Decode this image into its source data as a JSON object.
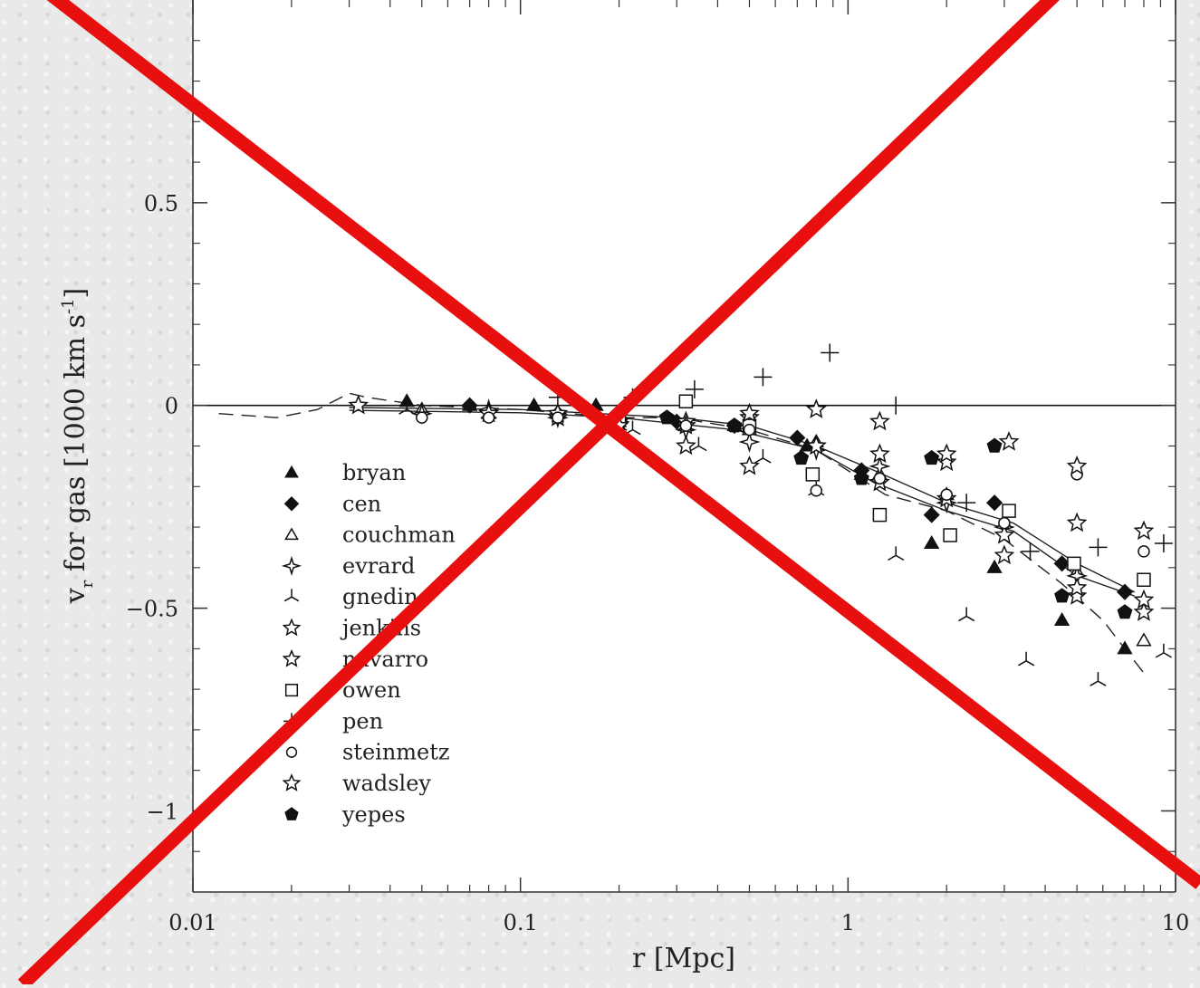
{
  "chart_data": {
    "type": "scatter",
    "xlabel": "r [Mpc]",
    "ylabel": "v_r for gas [1000 km s^-1]",
    "ylabel_main": "v",
    "ylabel_sub": "r",
    "ylabel_rest": " for gas [1000 km s",
    "ylabel_sup": "-1",
    "ylabel_end": "]",
    "xscale": "log",
    "xlim": [
      0.01,
      10
    ],
    "ylim": [
      -1.2,
      1.0
    ],
    "xticks": [
      {
        "value": 0.01,
        "label": "0.01"
      },
      {
        "value": 0.1,
        "label": "0.1"
      },
      {
        "value": 1,
        "label": "1"
      },
      {
        "value": 10,
        "label": "10"
      }
    ],
    "yticks": [
      {
        "value": 0.5,
        "label": "0.5"
      },
      {
        "value": 0,
        "label": "0"
      },
      {
        "value": -0.5,
        "label": "−0.5"
      },
      {
        "value": -1,
        "label": "−1"
      }
    ],
    "legend_position": "lower-left",
    "series": [
      {
        "name": "bryan",
        "marker": "filled-triangle",
        "points": [
          [
            0.045,
            0.01
          ],
          [
            0.07,
            0.0
          ],
          [
            0.11,
            0.0
          ],
          [
            0.17,
            0.0
          ],
          [
            0.45,
            -0.05
          ],
          [
            0.75,
            -0.1
          ],
          [
            1.1,
            -0.17
          ],
          [
            1.8,
            -0.34
          ],
          [
            2.8,
            -0.4
          ],
          [
            4.5,
            -0.53
          ],
          [
            7.0,
            -0.6
          ]
        ]
      },
      {
        "name": "cen",
        "marker": "filled-diamond",
        "points": [
          [
            0.07,
            0.0
          ],
          [
            0.13,
            -0.02
          ],
          [
            0.2,
            -0.03
          ],
          [
            0.3,
            -0.04
          ],
          [
            0.45,
            -0.05
          ],
          [
            0.7,
            -0.08
          ],
          [
            1.1,
            -0.16
          ],
          [
            1.8,
            -0.27
          ],
          [
            2.8,
            -0.24
          ],
          [
            4.5,
            -0.39
          ],
          [
            7.0,
            -0.46
          ]
        ]
      },
      {
        "name": "couchman",
        "marker": "open-triangle",
        "points": [
          [
            0.05,
            -0.01
          ],
          [
            0.08,
            -0.02
          ],
          [
            0.13,
            -0.02
          ],
          [
            0.2,
            -0.04
          ],
          [
            0.32,
            -0.05
          ],
          [
            0.5,
            -0.06
          ],
          [
            0.8,
            -0.09
          ],
          [
            1.25,
            -0.17
          ],
          [
            2.0,
            -0.22
          ],
          [
            3.0,
            -0.29
          ],
          [
            5.0,
            -0.41
          ],
          [
            8.0,
            -0.58
          ]
        ]
      },
      {
        "name": "evrard",
        "marker": "open-diamond-star",
        "points": [
          [
            0.05,
            -0.02
          ],
          [
            0.08,
            -0.01
          ],
          [
            0.13,
            -0.03
          ],
          [
            0.2,
            -0.04
          ],
          [
            0.32,
            -0.06
          ],
          [
            0.5,
            -0.09
          ],
          [
            0.8,
            -0.11
          ],
          [
            1.25,
            -0.15
          ],
          [
            2.0,
            -0.24
          ],
          [
            3.0,
            -0.3
          ],
          [
            5.0,
            -0.42
          ]
        ]
      },
      {
        "name": "gnedin",
        "marker": "three-prong",
        "points": [
          [
            0.045,
            -0.01
          ],
          [
            0.08,
            -0.02
          ],
          [
            0.13,
            -0.02
          ],
          [
            0.2,
            -0.05
          ],
          [
            0.22,
            -0.06
          ],
          [
            0.35,
            -0.1
          ],
          [
            0.55,
            -0.13
          ],
          [
            0.8,
            -0.21
          ],
          [
            1.4,
            -0.37
          ],
          [
            2.3,
            -0.52
          ],
          [
            3.5,
            -0.63
          ],
          [
            5.8,
            -0.68
          ],
          [
            9.2,
            -0.61
          ]
        ]
      },
      {
        "name": "jenkins",
        "marker": "open-star",
        "points": [
          [
            0.032,
            0.0
          ],
          [
            0.08,
            -0.02
          ],
          [
            0.13,
            -0.03
          ],
          [
            0.2,
            -0.04
          ],
          [
            0.32,
            -0.04
          ],
          [
            0.5,
            -0.15
          ],
          [
            0.8,
            -0.01
          ],
          [
            1.25,
            -0.19
          ],
          [
            2.0,
            -0.23
          ],
          [
            3.0,
            -0.32
          ],
          [
            5.0,
            -0.47
          ],
          [
            8.0,
            -0.51
          ]
        ]
      },
      {
        "name": "navarro",
        "marker": "open-star",
        "points": [
          [
            0.13,
            -0.02
          ],
          [
            0.2,
            -0.04
          ],
          [
            0.32,
            -0.05
          ],
          [
            0.5,
            -0.03
          ],
          [
            0.8,
            -0.1
          ],
          [
            1.25,
            -0.12
          ],
          [
            2.0,
            -0.14
          ],
          [
            3.0,
            -0.37
          ],
          [
            5.0,
            -0.45
          ],
          [
            8.0,
            -0.48
          ]
        ]
      },
      {
        "name": "owen",
        "marker": "open-square",
        "points": [
          [
            0.2,
            -0.03
          ],
          [
            0.32,
            0.01
          ],
          [
            0.5,
            -0.05
          ],
          [
            0.78,
            -0.17
          ],
          [
            1.25,
            -0.27
          ],
          [
            2.05,
            -0.32
          ],
          [
            3.1,
            -0.26
          ],
          [
            4.9,
            -0.39
          ],
          [
            8.0,
            -0.43
          ]
        ]
      },
      {
        "name": "pen",
        "marker": "plus",
        "points": [
          [
            0.13,
            0.02
          ],
          [
            0.22,
            0.02
          ],
          [
            0.34,
            0.04
          ],
          [
            0.55,
            0.07
          ],
          [
            0.88,
            0.13
          ],
          [
            1.4,
            0.0
          ],
          [
            2.3,
            -0.24
          ],
          [
            3.6,
            -0.36
          ],
          [
            5.8,
            -0.35
          ],
          [
            9.2,
            -0.34
          ]
        ]
      },
      {
        "name": "steinmetz",
        "marker": "open-circle",
        "points": [
          [
            0.05,
            -0.03
          ],
          [
            0.08,
            -0.03
          ],
          [
            0.13,
            -0.03
          ],
          [
            0.32,
            -0.05
          ],
          [
            0.5,
            -0.06
          ],
          [
            0.8,
            -0.21
          ],
          [
            1.25,
            -0.18
          ],
          [
            2.0,
            -0.22
          ],
          [
            3.0,
            -0.29
          ],
          [
            5.0,
            -0.17
          ],
          [
            8.0,
            -0.36
          ]
        ]
      },
      {
        "name": "wadsley",
        "marker": "open-star",
        "points": [
          [
            0.2,
            -0.05
          ],
          [
            0.32,
            -0.1
          ],
          [
            0.5,
            -0.02
          ],
          [
            0.8,
            -0.1
          ],
          [
            1.25,
            -0.04
          ],
          [
            2.0,
            -0.12
          ],
          [
            3.1,
            -0.09
          ],
          [
            5.0,
            -0.15
          ],
          [
            5.0,
            -0.29
          ],
          [
            8.0,
            -0.31
          ]
        ]
      },
      {
        "name": "yepes",
        "marker": "filled-pentagon",
        "points": [
          [
            0.28,
            -0.03
          ],
          [
            0.45,
            -0.05
          ],
          [
            0.72,
            -0.13
          ],
          [
            1.1,
            -0.18
          ],
          [
            1.8,
            -0.13
          ],
          [
            2.8,
            -0.1
          ],
          [
            4.5,
            -0.47
          ],
          [
            7.0,
            -0.51
          ]
        ]
      }
    ],
    "lines": [
      {
        "style": "solid",
        "points": [
          [
            0.03,
            -0.005
          ],
          [
            0.1,
            -0.01
          ],
          [
            0.3,
            -0.03
          ],
          [
            0.5,
            -0.05
          ],
          [
            0.8,
            -0.1
          ],
          [
            1.2,
            -0.16
          ],
          [
            2.0,
            -0.24
          ],
          [
            3.2,
            -0.29
          ],
          [
            5.0,
            -0.39
          ],
          [
            7.5,
            -0.46
          ]
        ]
      },
      {
        "style": "solid",
        "points": [
          [
            0.03,
            -0.012
          ],
          [
            0.1,
            -0.018
          ],
          [
            0.2,
            -0.03
          ],
          [
            0.45,
            -0.06
          ],
          [
            0.8,
            -0.11
          ],
          [
            1.2,
            -0.19
          ],
          [
            2.0,
            -0.26
          ],
          [
            3.2,
            -0.31
          ],
          [
            5.0,
            -0.42
          ],
          [
            7.5,
            -0.47
          ]
        ]
      },
      {
        "style": "dashed",
        "points": [
          [
            0.012,
            -0.02
          ],
          [
            0.018,
            -0.03
          ],
          [
            0.024,
            -0.01
          ],
          [
            0.03,
            0.03
          ],
          [
            0.034,
            0.02
          ],
          [
            0.05,
            0.0
          ],
          [
            0.1,
            -0.01
          ],
          [
            0.2,
            -0.03
          ],
          [
            0.3,
            -0.03
          ],
          [
            0.5,
            -0.06
          ],
          [
            0.8,
            -0.11
          ],
          [
            1.3,
            -0.22
          ],
          [
            2.0,
            -0.26
          ],
          [
            3.0,
            -0.33
          ],
          [
            4.5,
            -0.44
          ],
          [
            6.0,
            -0.53
          ],
          [
            7.0,
            -0.6
          ],
          [
            8.0,
            -0.66
          ]
        ]
      }
    ],
    "overlay": {
      "type": "cross",
      "color": "#e8100f"
    }
  }
}
